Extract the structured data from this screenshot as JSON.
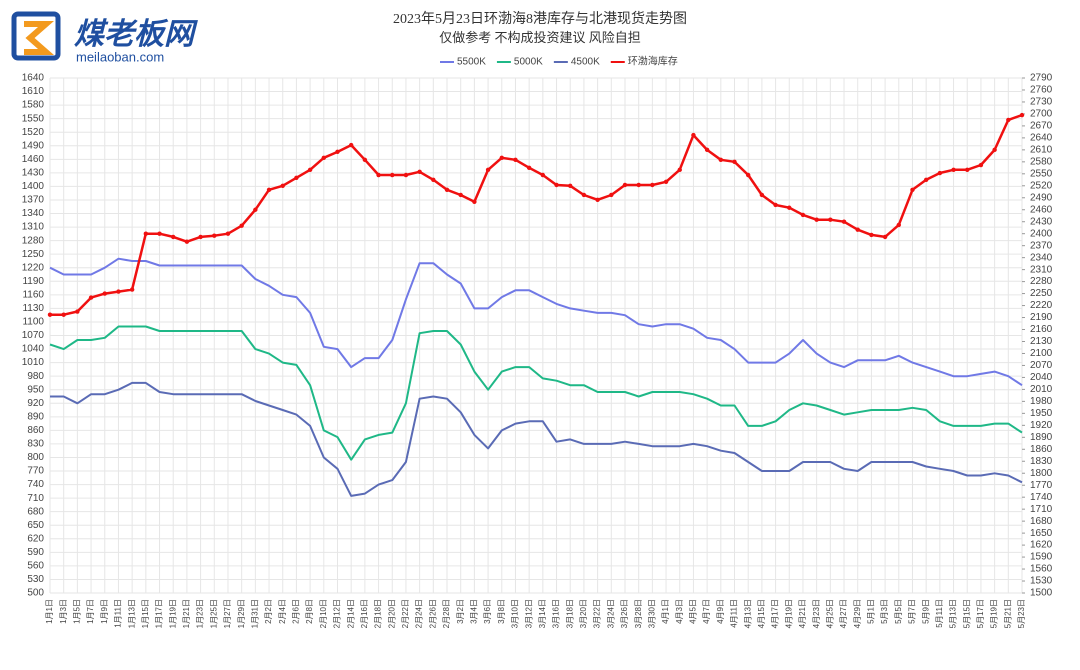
{
  "logo": {
    "name": "煤老板网",
    "site": "meilaoban.com"
  },
  "chart_data": {
    "type": "line",
    "title": "2023年5月23日环渤海8港库存与北港现货走势图",
    "subtitle": "仅做参考 不构成投资建议 风险自担",
    "categories": [
      "1月1日",
      "1月3日",
      "1月5日",
      "1月7日",
      "1月9日",
      "1月11日",
      "1月13日",
      "1月15日",
      "1月17日",
      "1月19日",
      "1月21日",
      "1月23日",
      "1月25日",
      "1月27日",
      "1月29日",
      "1月31日",
      "2月2日",
      "2月4日",
      "2月6日",
      "2月8日",
      "2月10日",
      "2月12日",
      "2月14日",
      "2月16日",
      "2月18日",
      "2月20日",
      "2月22日",
      "2月24日",
      "2月26日",
      "2月28日",
      "3月2日",
      "3月4日",
      "3月6日",
      "3月8日",
      "3月10日",
      "3月12日",
      "3月14日",
      "3月16日",
      "3月18日",
      "3月20日",
      "3月22日",
      "3月24日",
      "3月26日",
      "3月28日",
      "3月30日",
      "4月1日",
      "4月3日",
      "4月5日",
      "4月7日",
      "4月9日",
      "4月11日",
      "4月13日",
      "4月15日",
      "4月17日",
      "4月19日",
      "4月21日",
      "4月23日",
      "4月25日",
      "4月27日",
      "4月29日",
      "5月1日",
      "5月3日",
      "5月5日",
      "5月7日",
      "5月9日",
      "5月11日",
      "5月13日",
      "5月15日",
      "5月17日",
      "5月19日",
      "5月21日",
      "5月23日"
    ],
    "series": [
      {
        "name": "5500K",
        "color": "#7079e6",
        "values": [
          1220,
          1205,
          1205,
          1205,
          1220,
          1240,
          1235,
          1235,
          1225,
          1225,
          1225,
          1225,
          1225,
          1225,
          1225,
          1195,
          1180,
          1160,
          1155,
          1120,
          1045,
          1040,
          1000,
          1020,
          1020,
          1060,
          1150,
          1230,
          1230,
          1205,
          1185,
          1130,
          1130,
          1155,
          1170,
          1170,
          1155,
          1140,
          1130,
          1125,
          1120,
          1120,
          1115,
          1095,
          1090,
          1095,
          1095,
          1085,
          1065,
          1060,
          1040,
          1010,
          1010,
          1010,
          1030,
          1060,
          1030,
          1010,
          1000,
          1015,
          1015,
          1015,
          1025,
          1010,
          1000,
          990,
          980,
          980,
          985,
          990,
          980,
          960
        ]
      },
      {
        "name": "5000K",
        "color": "#1fb887",
        "values": [
          1050,
          1040,
          1060,
          1060,
          1065,
          1090,
          1090,
          1090,
          1080,
          1080,
          1080,
          1080,
          1080,
          1080,
          1080,
          1040,
          1030,
          1010,
          1005,
          960,
          860,
          845,
          795,
          840,
          850,
          855,
          920,
          1075,
          1080,
          1080,
          1050,
          990,
          950,
          990,
          1000,
          1000,
          975,
          970,
          960,
          960,
          945,
          945,
          945,
          935,
          945,
          945,
          945,
          940,
          930,
          915,
          915,
          870,
          870,
          880,
          905,
          920,
          915,
          905,
          895,
          900,
          905,
          905,
          905,
          910,
          905,
          880,
          870,
          870,
          870,
          875,
          875,
          855
        ]
      },
      {
        "name": "4500K",
        "color": "#5a6bb5",
        "values": [
          935,
          935,
          920,
          940,
          940,
          950,
          965,
          965,
          945,
          940,
          940,
          940,
          940,
          940,
          940,
          925,
          915,
          905,
          895,
          870,
          800,
          775,
          715,
          720,
          740,
          750,
          790,
          930,
          935,
          930,
          900,
          850,
          820,
          860,
          875,
          880,
          880,
          835,
          840,
          830,
          830,
          830,
          835,
          830,
          825,
          825,
          825,
          830,
          825,
          815,
          810,
          790,
          770,
          770,
          770,
          790,
          790,
          790,
          775,
          770,
          790,
          790,
          790,
          790,
          780,
          775,
          770,
          760,
          760,
          765,
          760,
          745
        ]
      },
      {
        "name": "环渤海库存",
        "color": "#f01010",
        "axis": "y2",
        "values": [
          2197,
          2197,
          2205,
          2240,
          2250,
          2255,
          2260,
          2400,
          2400,
          2392,
          2380,
          2392,
          2395,
          2400,
          2420,
          2460,
          2510,
          2520,
          2540,
          2560,
          2590,
          2605,
          2622,
          2585,
          2547,
          2547,
          2547,
          2555,
          2535,
          2510,
          2497,
          2480,
          2560,
          2590,
          2585,
          2565,
          2547,
          2522,
          2520,
          2497,
          2485,
          2497,
          2522,
          2522,
          2522,
          2530,
          2560,
          2647,
          2610,
          2585,
          2580,
          2547,
          2497,
          2472,
          2465,
          2447,
          2435,
          2435,
          2430,
          2410,
          2397,
          2392,
          2422,
          2510,
          2535,
          2552,
          2560,
          2560,
          2572,
          2610,
          2685,
          2697
        ]
      }
    ],
    "ylim": [
      500,
      1640
    ],
    "yticks": [
      500,
      530,
      560,
      590,
      620,
      650,
      680,
      710,
      740,
      770,
      800,
      830,
      860,
      890,
      920,
      950,
      980,
      1010,
      1040,
      1070,
      1100,
      1130,
      1160,
      1190,
      1220,
      1250,
      1280,
      1310,
      1340,
      1370,
      1400,
      1430,
      1460,
      1490,
      1520,
      1550,
      1580,
      1610,
      1640
    ],
    "y2lim": [
      1500,
      2790
    ],
    "y2ticks": [
      1500,
      1530,
      1560,
      1590,
      1620,
      1650,
      1680,
      1710,
      1740,
      1770,
      1800,
      1830,
      1860,
      1890,
      1920,
      1950,
      1980,
      2010,
      2040,
      2070,
      2100,
      2130,
      2160,
      2190,
      2220,
      2250,
      2280,
      2310,
      2340,
      2370,
      2400,
      2430,
      2460,
      2490,
      2520,
      2550,
      2580,
      2610,
      2640,
      2670,
      2700,
      2730,
      2760,
      2790
    ],
    "grid": true,
    "legend": "top"
  }
}
